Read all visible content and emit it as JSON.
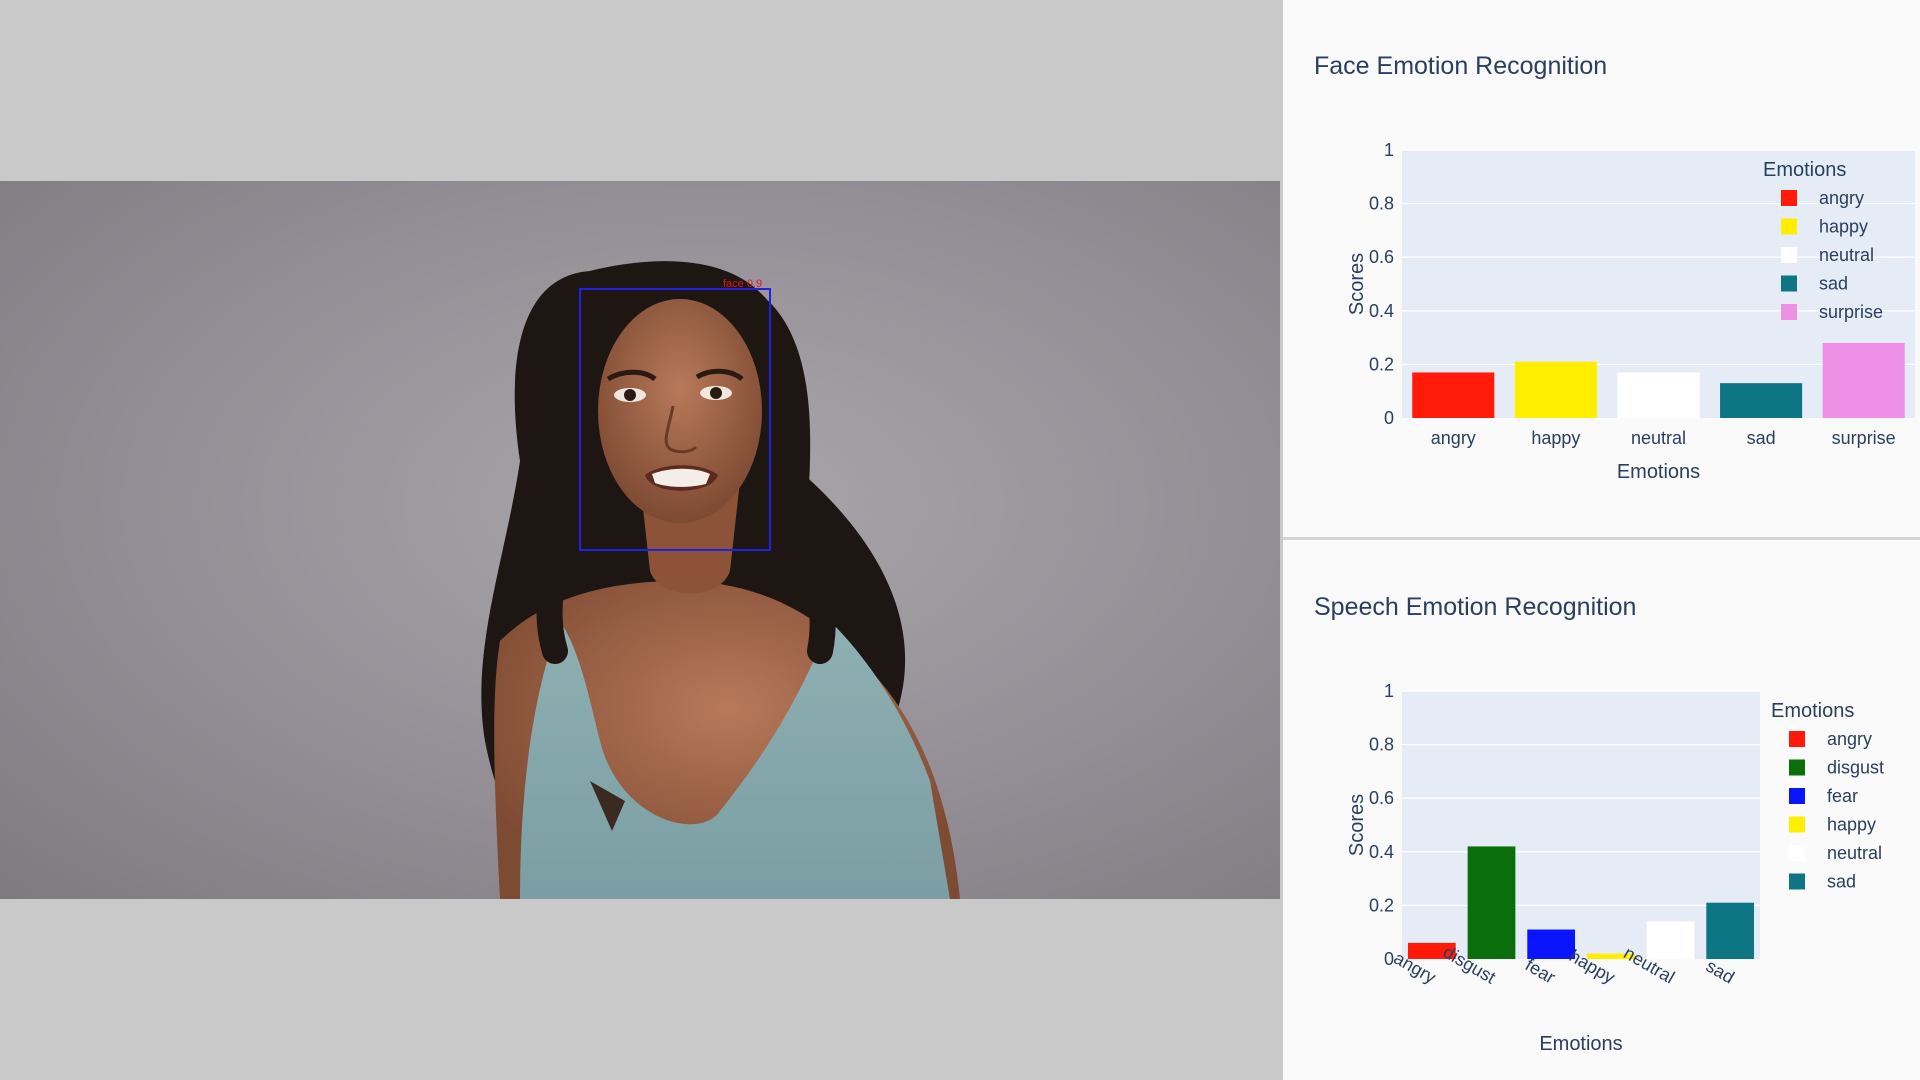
{
  "video": {
    "face_box_label": "face 0.9",
    "face_box_color": "#2020e0"
  },
  "colors": {
    "angry": "#ff1a0a",
    "disgust": "#0a6e0a",
    "fear": "#0a14ff",
    "happy": "#ffee00",
    "neutral": "#ffffff",
    "sad": "#0e7584",
    "surprise": "#ee90e6",
    "plot_bg": "#e5ecf6",
    "grid": "#ffffff",
    "text": "#2a3f5f"
  },
  "chart_data": [
    {
      "type": "bar",
      "title": "Face Emotion Recognition",
      "xlabel": "Emotions",
      "ylabel": "Scores",
      "categories": [
        "angry",
        "happy",
        "neutral",
        "sad",
        "surprise"
      ],
      "values": [
        0.17,
        0.21,
        0.17,
        0.13,
        0.28
      ],
      "ylim": [
        0,
        1
      ],
      "yticks": [
        "0",
        "0.2",
        "0.4",
        "0.6",
        "0.8",
        "1"
      ],
      "legend_title": "Emotions",
      "legend_position": "right",
      "grid": true,
      "tick_rotation": "none"
    },
    {
      "type": "bar",
      "title": "Speech Emotion Recognition",
      "xlabel": "Emotions",
      "ylabel": "Scores",
      "categories": [
        "angry",
        "disgust",
        "fear",
        "happy",
        "neutral",
        "sad"
      ],
      "values": [
        0.06,
        0.42,
        0.11,
        0.02,
        0.14,
        0.21
      ],
      "ylim": [
        0,
        1
      ],
      "yticks": [
        "0",
        "0.2",
        "0.4",
        "0.6",
        "0.8",
        "1"
      ],
      "legend_title": "Emotions",
      "legend_position": "right",
      "grid": true,
      "tick_rotation": "angled"
    }
  ]
}
